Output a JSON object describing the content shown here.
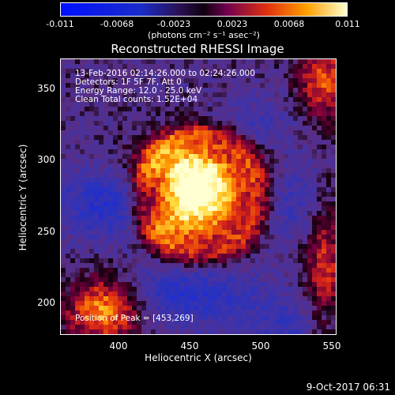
{
  "colorbar": {
    "ticks": [
      "-0.011",
      "-0.0068",
      "-0.0023",
      "0.0023",
      "0.0068",
      "0.011"
    ],
    "units": "(photons cm⁻² s⁻¹ asec⁻²)"
  },
  "title": "Reconstructed RHESSI Image",
  "info": {
    "line1": "13-Feb-2016 02:14:26.000 to 02:24:26.000",
    "line2": "Detectors: 1F 5F 7F, Att 0",
    "line3": "Energy Range: 12.0 - 25.0 keV",
    "line4": "Clean     Total counts: 1.52E+04"
  },
  "peak_text": "Position of Peak = [453,269]",
  "axes": {
    "xlabel": "Heliocentric X (arcsec)",
    "ylabel": "Heliocentric Y (arcsec)",
    "xticks": [
      "400",
      "450",
      "500",
      "550"
    ],
    "yticks": [
      "350",
      "300",
      "250",
      "200"
    ]
  },
  "timestamp": "9-Oct-2017 06:31"
}
